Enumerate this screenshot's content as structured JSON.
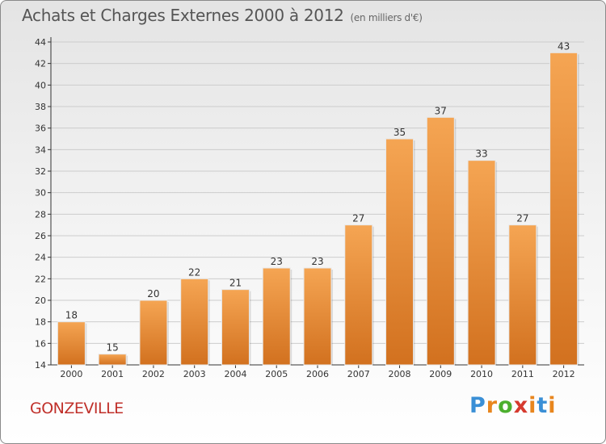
{
  "title": "Achats et Charges Externes 2000 à 2012",
  "subtitle": "(en milliers d'€)",
  "commune": "GONZEVILLE",
  "logo": {
    "text": "Proxiti",
    "colors": [
      "#3a8fd6",
      "#e8861e",
      "#4caf2e",
      "#d63a2e",
      "#e8861e",
      "#3a8fd6",
      "#e8861e"
    ]
  },
  "colors": {
    "bar_top": "#f5a553",
    "bar_bottom": "#d2711f",
    "grid": "#cccccc",
    "commune": "#c0302a"
  },
  "chart_data": {
    "type": "bar",
    "title": "Achats et Charges Externes 2000 à 2012",
    "subtitle": "(en milliers d'€)",
    "categories": [
      "2000",
      "2001",
      "2002",
      "2003",
      "2004",
      "2005",
      "2006",
      "2007",
      "2008",
      "2009",
      "2010",
      "2011",
      "2012"
    ],
    "values": [
      18,
      15,
      20,
      22,
      21,
      23,
      23,
      27,
      35,
      37,
      33,
      27,
      43
    ],
    "value_labels": [
      "18",
      "15",
      "20",
      "22",
      "21",
      "23",
      "23",
      "27",
      "35",
      "37",
      "33",
      "27",
      "43"
    ],
    "yticks": [
      "14",
      "16",
      "18",
      "20",
      "22",
      "24",
      "26",
      "28",
      "30",
      "32",
      "34",
      "36",
      "38",
      "40",
      "42",
      "44"
    ],
    "ylim": [
      14,
      44
    ],
    "grid": true,
    "legend": "none"
  }
}
